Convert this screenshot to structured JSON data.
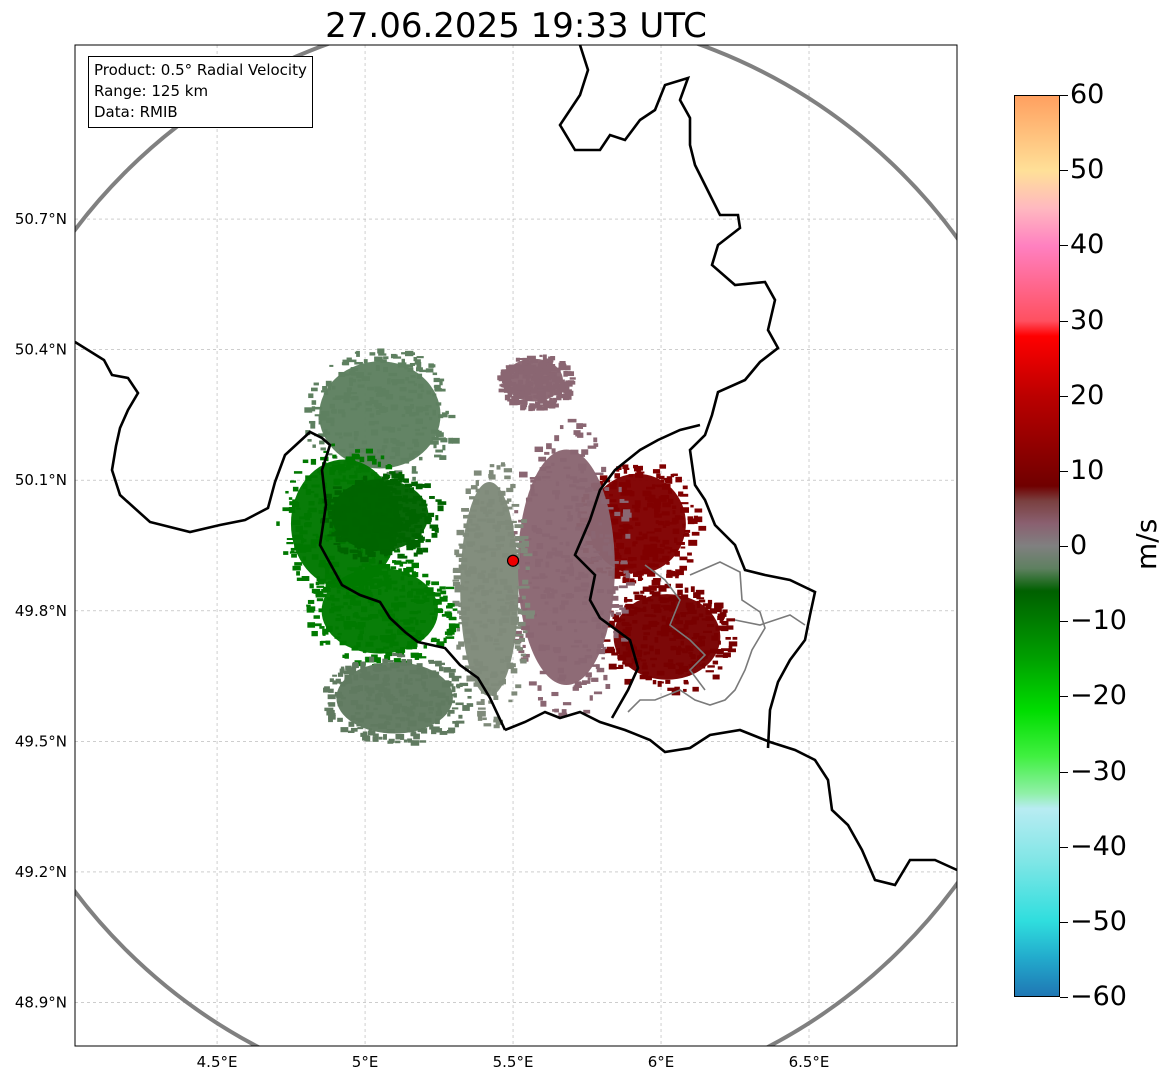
{
  "title": "27.06.2025 19:33 UTC",
  "info_box": {
    "product": "Product: 0.5° Radial Velocity",
    "range": "Range: 125 km",
    "data_source": "Data: RMIB"
  },
  "map": {
    "projection": "lon-lat",
    "lon_range": [
      4.02,
      7.0
    ],
    "lat_range": [
      48.8,
      51.1
    ],
    "radar_site": {
      "lon": 5.5,
      "lat": 49.915
    },
    "range_ring_km": 125,
    "lon_ticks": [
      {
        "value": 4.5,
        "label": "4.5°E"
      },
      {
        "value": 5.0,
        "label": "5°E"
      },
      {
        "value": 5.5,
        "label": "5.5°E"
      },
      {
        "value": 6.0,
        "label": "6°E"
      },
      {
        "value": 6.5,
        "label": "6.5°E"
      }
    ],
    "lat_ticks": [
      {
        "value": 48.9,
        "label": "48.9°N"
      },
      {
        "value": 49.2,
        "label": "49.2°N"
      },
      {
        "value": 49.5,
        "label": "49.5°N"
      },
      {
        "value": 49.8,
        "label": "49.8°N"
      },
      {
        "value": 50.1,
        "label": "50.1°N"
      },
      {
        "value": 50.4,
        "label": "50.4°N"
      },
      {
        "value": 50.7,
        "label": "50.7°N"
      }
    ],
    "gridlines": true,
    "border_color": "#000000",
    "ring_color": "#808080"
  },
  "colorbar": {
    "unit": "m/s",
    "min": -60,
    "max": 60,
    "ticks": [
      {
        "value": 60,
        "label": "60"
      },
      {
        "value": 50,
        "label": "50"
      },
      {
        "value": 40,
        "label": "40"
      },
      {
        "value": 30,
        "label": "30"
      },
      {
        "value": 20,
        "label": "20"
      },
      {
        "value": 10,
        "label": "10"
      },
      {
        "value": 0,
        "label": "0"
      },
      {
        "value": -10,
        "label": "−10"
      },
      {
        "value": -20,
        "label": "−20"
      },
      {
        "value": -30,
        "label": "−30"
      },
      {
        "value": -40,
        "label": "−40"
      },
      {
        "value": -50,
        "label": "−50"
      },
      {
        "value": -60,
        "label": "−60"
      }
    ],
    "stops": [
      {
        "value": -60,
        "color": "#1f77b4"
      },
      {
        "value": -55,
        "color": "#22aacc"
      },
      {
        "value": -50,
        "color": "#2fdede"
      },
      {
        "value": -42,
        "color": "#80e6e6"
      },
      {
        "value": -35,
        "color": "#b8ecf2"
      },
      {
        "value": -33,
        "color": "#90f0a8"
      },
      {
        "value": -28,
        "color": "#40f040"
      },
      {
        "value": -22,
        "color": "#00dd00"
      },
      {
        "value": -15,
        "color": "#00a000"
      },
      {
        "value": -6,
        "color": "#006000"
      },
      {
        "value": -3,
        "color": "#5e8060"
      },
      {
        "value": 0,
        "color": "#808080"
      },
      {
        "value": 3,
        "color": "#8a6070"
      },
      {
        "value": 6,
        "color": "#7a4040"
      },
      {
        "value": 8,
        "color": "#700000"
      },
      {
        "value": 20,
        "color": "#bb0000"
      },
      {
        "value": 28,
        "color": "#ff0000"
      },
      {
        "value": 30,
        "color": "#ff5060"
      },
      {
        "value": 40,
        "color": "#ff80c0"
      },
      {
        "value": 45,
        "color": "#ffb8c0"
      },
      {
        "value": 50,
        "color": "#ffe098"
      },
      {
        "value": 60,
        "color": "#ffa060"
      }
    ]
  },
  "echoes": [
    {
      "name": "outbound-core",
      "color": "#780000",
      "lon": 6.02,
      "lat": 49.74,
      "rlon": 0.22,
      "rlat": 0.12
    },
    {
      "name": "outbound-northeast",
      "color": "#800000",
      "lon": 5.92,
      "lat": 50.0,
      "rlon": 0.2,
      "rlat": 0.14
    },
    {
      "name": "mauve-east",
      "color": "#8a6672",
      "lon": 5.68,
      "lat": 49.9,
      "rlon": 0.2,
      "rlat": 0.33
    },
    {
      "name": "mauve-north",
      "color": "#8a6672",
      "lon": 5.57,
      "lat": 50.33,
      "rlon": 0.12,
      "rlat": 0.06
    },
    {
      "name": "zero-center",
      "color": "#7f8a7a",
      "lon": 5.42,
      "lat": 49.85,
      "rlon": 0.12,
      "rlat": 0.3
    },
    {
      "name": "inbound-grey-north",
      "color": "#5e8060",
      "lon": 5.05,
      "lat": 50.25,
      "rlon": 0.25,
      "rlat": 0.15
    },
    {
      "name": "inbound-west",
      "color": "#007800",
      "lon": 4.93,
      "lat": 50.0,
      "rlon": 0.22,
      "rlat": 0.18
    },
    {
      "name": "inbound-core",
      "color": "#006400",
      "lon": 5.05,
      "lat": 50.02,
      "rlon": 0.2,
      "rlat": 0.1
    },
    {
      "name": "inbound-southwest",
      "color": "#007a00",
      "lon": 5.05,
      "lat": 49.8,
      "rlon": 0.24,
      "rlat": 0.12
    },
    {
      "name": "inbound-grey-south",
      "color": "#607a60",
      "lon": 5.1,
      "lat": 49.6,
      "rlon": 0.24,
      "rlat": 0.1
    }
  ]
}
